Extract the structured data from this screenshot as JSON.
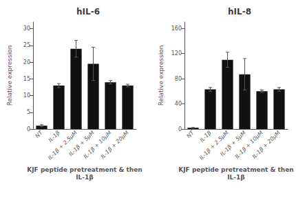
{
  "chart_data": [
    {
      "type": "bar",
      "title": "hIL-6",
      "ylabel": "Relative expression",
      "xlabel": "KJF peptide pretreatment & then\nIL-1β",
      "categories": [
        "NT",
        "IL-1β",
        "IL-1β + 2.5μM",
        "IL-1β + 5μM",
        "IL-1β + 10μM",
        "IL-1β + 20μM"
      ],
      "values": [
        1.0,
        13.0,
        24.0,
        19.5,
        14.0,
        13.0
      ],
      "errors": [
        0.3,
        0.6,
        2.5,
        5.0,
        0.5,
        0.4
      ],
      "ylim": [
        0,
        32
      ],
      "yticks": [
        0,
        5,
        10,
        15,
        20,
        25,
        30
      ],
      "color": "#111111",
      "grid": false
    },
    {
      "type": "bar",
      "title": "hIL-8",
      "ylabel": "Relative expression",
      "xlabel": "KJF peptide pretreatment & then\nIL-1β",
      "categories": [
        "NT",
        "IL-1β",
        "IL-1β + 2.5μM",
        "IL-1β + 5μM",
        "IL-1β + 10μM",
        "IL-1β + 20μM"
      ],
      "values": [
        2.0,
        63.0,
        110.0,
        87.0,
        60.0,
        63.0
      ],
      "errors": [
        0.5,
        3.0,
        12.0,
        25.0,
        2.0,
        3.0
      ],
      "ylim": [
        0,
        170
      ],
      "yticks": [
        0,
        40,
        80,
        120,
        160
      ],
      "color": "#111111",
      "grid": false
    }
  ]
}
